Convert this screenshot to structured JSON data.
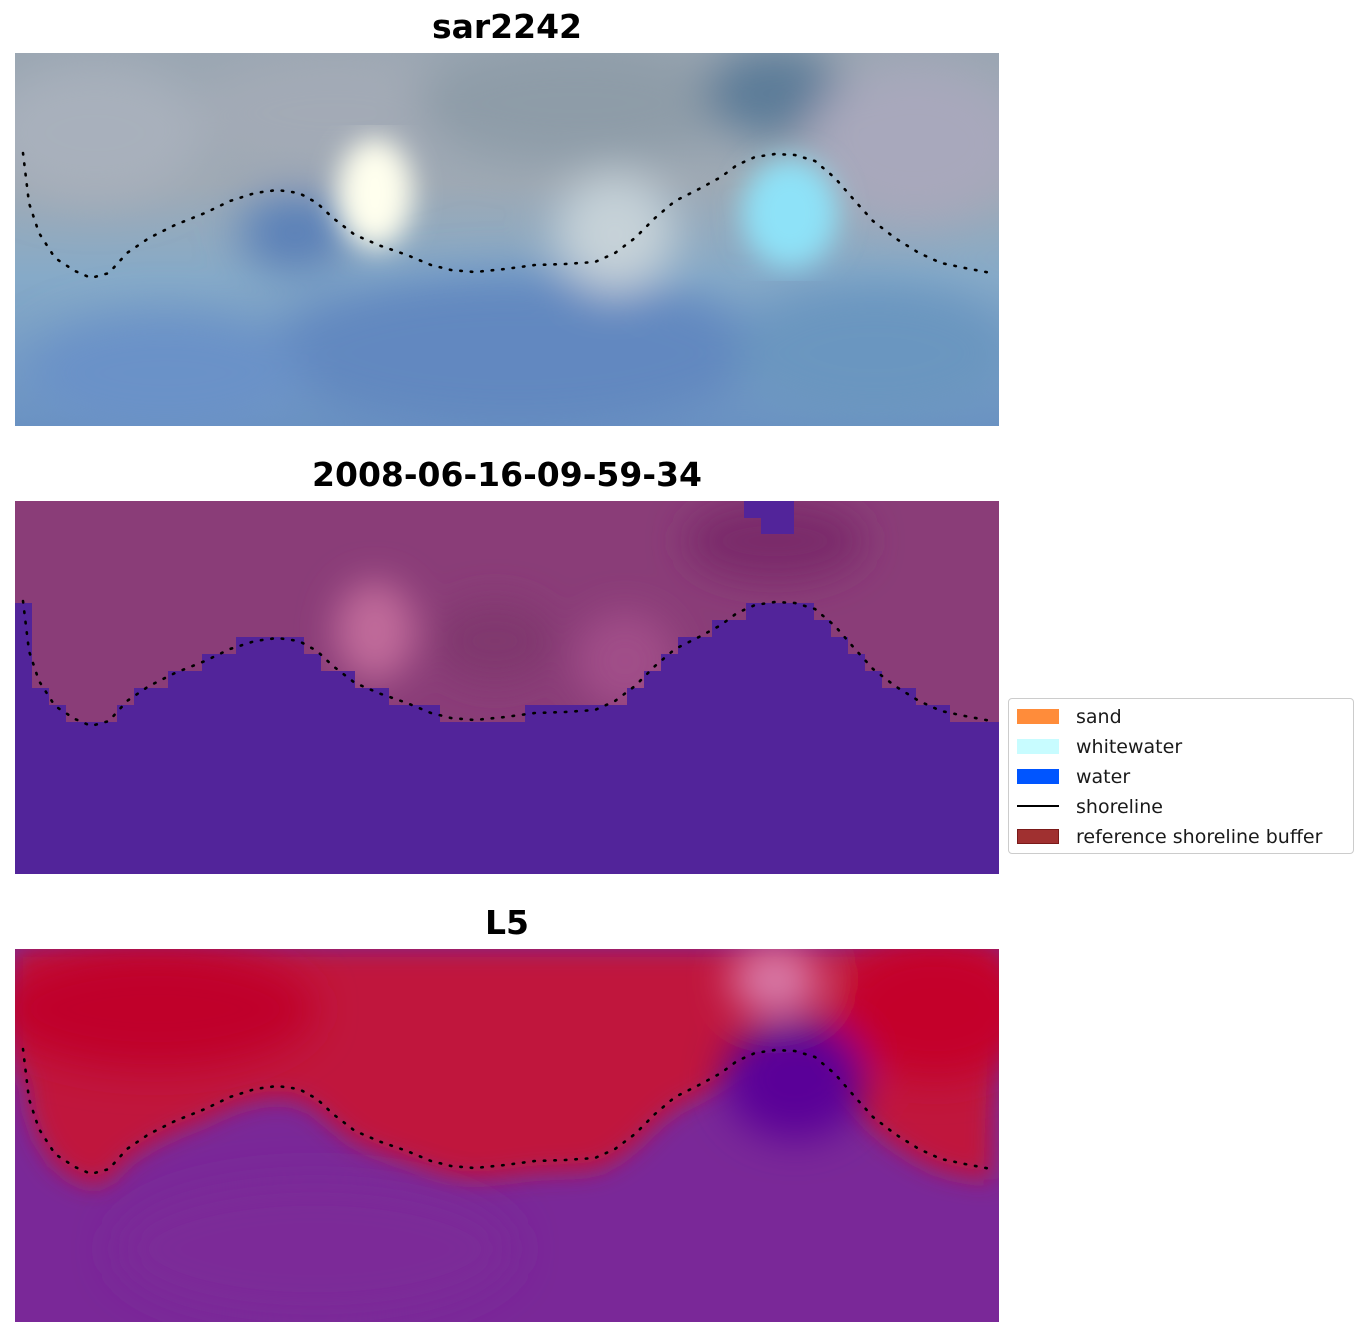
{
  "panels": [
    {
      "title": "sar2242",
      "style": "rgb"
    },
    {
      "title": "2008-06-16-09-59-34",
      "style": "classified"
    },
    {
      "title": "L5",
      "style": "index"
    }
  ],
  "legend": {
    "items": [
      {
        "label": "sand",
        "color": "#ff8c3a",
        "kind": "patch"
      },
      {
        "label": "whitewater",
        "color": "#c8fcff",
        "kind": "patch"
      },
      {
        "label": "water",
        "color": "#0055ff",
        "kind": "patch"
      },
      {
        "label": "shoreline",
        "color": "#000000",
        "kind": "line"
      },
      {
        "label": "reference shoreline buffer",
        "color": "#a03030",
        "edge": "#7a1a1a",
        "kind": "patch"
      }
    ]
  },
  "colors": {
    "land_tint": "#8a3d78",
    "water_class": "#52249a",
    "index_high": "#c0002a",
    "index_low": "#7a2898",
    "shoreline_dots": "#000000"
  }
}
